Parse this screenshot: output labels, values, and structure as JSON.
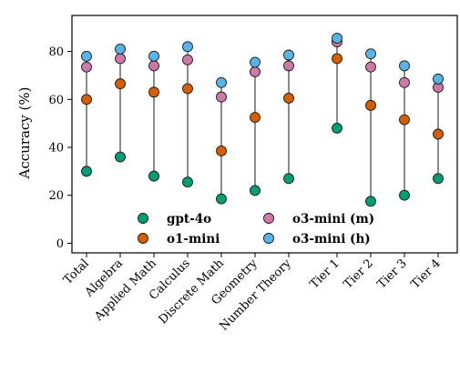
{
  "chart_data": {
    "type": "scatter",
    "title": "",
    "xlabel": "",
    "ylabel": "Accuracy (%)",
    "ylim": [
      -4,
      95
    ],
    "yticks": [
      0,
      20,
      40,
      60,
      80
    ],
    "grid": false,
    "legend_position": "bottom-center",
    "categories": [
      "Total",
      "Algebra",
      "Applied Math",
      "Calculus",
      "Discrete Math",
      "Geometry",
      "Number Theory",
      "Tier 1",
      "Tier 2",
      "Tier 3",
      "Tier 4"
    ],
    "category_gap_after": "Number Theory",
    "series": [
      {
        "name": "gpt-4o",
        "color": "#009e73",
        "values": [
          30,
          36,
          28,
          25.5,
          18.5,
          22,
          27,
          48,
          17.5,
          20,
          27
        ]
      },
      {
        "name": "o1-mini",
        "color": "#d55e00",
        "values": [
          60,
          66.5,
          63,
          64.5,
          38.5,
          52.5,
          60.5,
          77,
          57.5,
          51.5,
          45.5
        ]
      },
      {
        "name": "o3-mini (m)",
        "color": "#cc79a7",
        "values": [
          73.5,
          77,
          74,
          76.5,
          61,
          71.5,
          74,
          84,
          73.5,
          67,
          65
        ]
      },
      {
        "name": "o3-mini (h)",
        "color": "#56b4e9",
        "values": [
          78,
          81,
          78,
          82,
          67,
          75.5,
          78.5,
          85.5,
          79,
          74,
          68.5
        ]
      }
    ],
    "connector_color": "#8c8c8c"
  }
}
